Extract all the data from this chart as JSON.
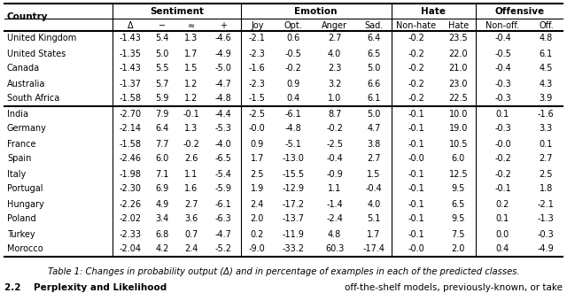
{
  "title": "Table 1: Changes in probability output (Δ) and in percentage of examples in each of the predicted classes.",
  "subheaders": [
    "Δ",
    "−",
    "≈",
    "+",
    "Joy",
    "Opt.",
    "Anger",
    "Sad.",
    "Non-hate",
    "Hate",
    "Non-off.",
    "Off."
  ],
  "group1": [
    [
      "United Kingdom",
      "-1.43",
      "5.4",
      "1.3",
      "-4.6",
      "-2.1",
      "0.6",
      "2.7",
      "6.4",
      "-0.2",
      "23.5",
      "-0.4",
      "4.8"
    ],
    [
      "United States",
      "-1.35",
      "5.0",
      "1.7",
      "-4.9",
      "-2.3",
      "-0.5",
      "4.0",
      "6.5",
      "-0.2",
      "22.0",
      "-0.5",
      "6.1"
    ],
    [
      "Canada",
      "-1.43",
      "5.5",
      "1.5",
      "-5.0",
      "-1.6",
      "-0.2",
      "2.3",
      "5.0",
      "-0.2",
      "21.0",
      "-0.4",
      "4.5"
    ],
    [
      "Australia",
      "-1.37",
      "5.7",
      "1.2",
      "-4.7",
      "-2.3",
      "0.9",
      "3.2",
      "6.6",
      "-0.2",
      "23.0",
      "-0.3",
      "4.3"
    ],
    [
      "South Africa",
      "-1.58",
      "5.9",
      "1.2",
      "-4.8",
      "-1.5",
      "0.4",
      "1.0",
      "6.1",
      "-0.2",
      "22.5",
      "-0.3",
      "3.9"
    ]
  ],
  "group2": [
    [
      "India",
      "-2.70",
      "7.9",
      "-0.1",
      "-4.4",
      "-2.5",
      "-6.1",
      "8.7",
      "5.0",
      "-0.1",
      "10.0",
      "0.1",
      "-1.6"
    ],
    [
      "Germany",
      "-2.14",
      "6.4",
      "1.3",
      "-5.3",
      "-0.0",
      "-4.8",
      "-0.2",
      "4.7",
      "-0.1",
      "19.0",
      "-0.3",
      "3.3"
    ],
    [
      "France",
      "-1.58",
      "7.7",
      "-0.2",
      "-4.0",
      "0.9",
      "-5.1",
      "-2.5",
      "3.8",
      "-0.1",
      "10.5",
      "-0.0",
      "0.1"
    ],
    [
      "Spain",
      "-2.46",
      "6.0",
      "2.6",
      "-6.5",
      "1.7",
      "-13.0",
      "-0.4",
      "2.7",
      "-0.0",
      "6.0",
      "-0.2",
      "2.7"
    ],
    [
      "Italy",
      "-1.98",
      "7.1",
      "1.1",
      "-5.4",
      "2.5",
      "-15.5",
      "-0.9",
      "1.5",
      "-0.1",
      "12.5",
      "-0.2",
      "2.5"
    ],
    [
      "Portugal",
      "-2.30",
      "6.9",
      "1.6",
      "-5.9",
      "1.9",
      "-12.9",
      "1.1",
      "-0.4",
      "-0.1",
      "9.5",
      "-0.1",
      "1.8"
    ],
    [
      "Hungary",
      "-2.26",
      "4.9",
      "2.7",
      "-6.1",
      "2.4",
      "-17.2",
      "-1.4",
      "4.0",
      "-0.1",
      "6.5",
      "0.2",
      "-2.1"
    ],
    [
      "Poland",
      "-2.02",
      "3.4",
      "3.6",
      "-6.3",
      "2.0",
      "-13.7",
      "-2.4",
      "5.1",
      "-0.1",
      "9.5",
      "0.1",
      "-1.3"
    ],
    [
      "Turkey",
      "-2.33",
      "6.8",
      "0.7",
      "-4.7",
      "0.2",
      "-11.9",
      "4.8",
      "1.7",
      "-0.1",
      "7.5",
      "0.0",
      "-0.3"
    ],
    [
      "Morocco",
      "-2.04",
      "4.2",
      "2.4",
      "-5.2",
      "-9.0",
      "-33.2",
      "60.3",
      "-17.4",
      "-0.0",
      "2.0",
      "0.4",
      "-4.9"
    ]
  ],
  "font_size": 7.0,
  "caption_font_size": 7.2,
  "section_heading": "2.2    Perplexity and Likelihood",
  "section_right": "off-the-shelf models, previously-known, or take"
}
